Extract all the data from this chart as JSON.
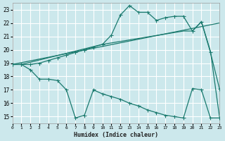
{
  "xlabel": "Humidex (Indice chaleur)",
  "bg_color": "#cce8ec",
  "grid_color": "#ffffff",
  "line_color": "#1a7a6e",
  "xlim": [
    0,
    23
  ],
  "ylim": [
    14.5,
    23.5
  ],
  "yticks": [
    15,
    16,
    17,
    18,
    19,
    20,
    21,
    22,
    23
  ],
  "xticks": [
    0,
    1,
    2,
    3,
    4,
    5,
    6,
    7,
    8,
    9,
    10,
    11,
    12,
    13,
    14,
    15,
    16,
    17,
    18,
    19,
    20,
    21,
    22,
    23
  ],
  "line1_x": [
    0,
    1,
    2,
    3,
    4,
    5,
    6,
    7,
    8,
    9,
    10,
    11,
    12,
    13,
    14,
    15,
    16,
    17,
    18,
    19,
    20,
    21,
    22,
    23
  ],
  "line1_y": [
    18.9,
    18.9,
    18.5,
    17.8,
    17.8,
    17.7,
    17.0,
    14.9,
    15.1,
    17.0,
    16.7,
    16.5,
    16.3,
    16.0,
    15.8,
    15.5,
    15.3,
    15.1,
    15.0,
    14.9,
    17.1,
    17.0,
    14.9,
    14.9
  ],
  "line2_x": [
    0,
    1,
    2,
    3,
    4,
    5,
    6,
    7,
    8,
    9,
    10,
    11,
    12,
    13,
    14,
    15,
    16,
    17,
    18,
    19,
    20,
    21,
    22,
    23
  ],
  "line2_y": [
    18.9,
    18.9,
    18.9,
    19.0,
    19.2,
    19.4,
    19.6,
    19.8,
    20.0,
    20.2,
    20.4,
    21.1,
    22.6,
    23.3,
    22.8,
    22.8,
    22.2,
    22.4,
    22.5,
    22.5,
    21.4,
    22.1,
    19.8,
    17.1
  ],
  "line3_x": [
    0,
    1,
    10,
    19,
    20,
    21,
    22,
    23
  ],
  "line3_y": [
    18.9,
    18.9,
    20.4,
    21.4,
    21.4,
    22.1,
    19.9,
    15.0
  ],
  "line4_x": [
    0,
    23
  ],
  "line4_y": [
    18.9,
    22.0
  ]
}
